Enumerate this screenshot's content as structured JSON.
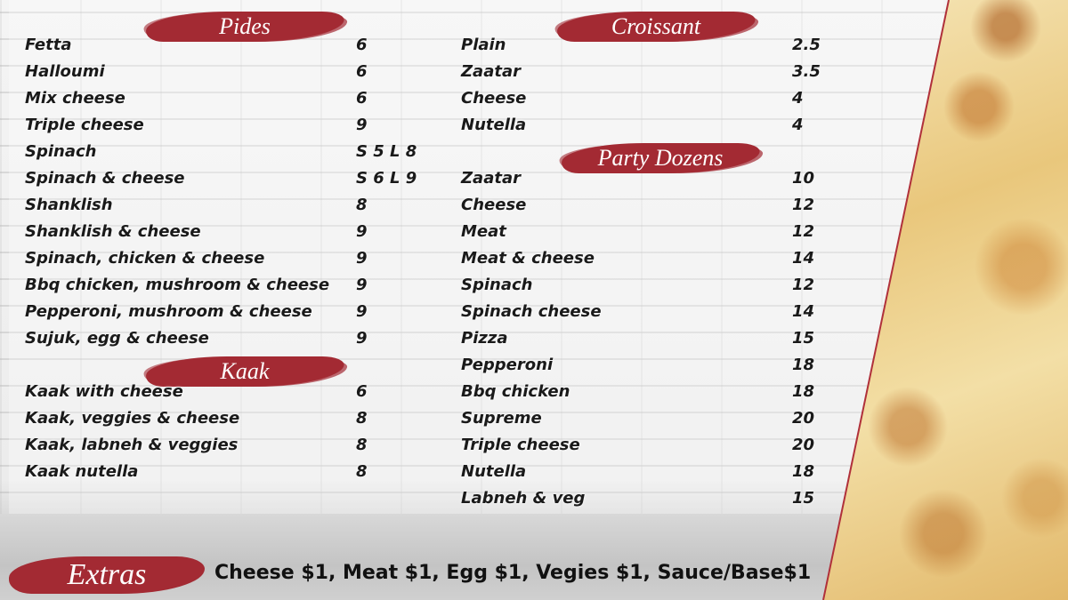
{
  "sections": [
    {
      "title": "Pides",
      "items": [
        {
          "name": "Fetta",
          "price": "6"
        },
        {
          "name": "Halloumi",
          "price": "6"
        },
        {
          "name": "Mix cheese",
          "price": "6"
        },
        {
          "name": "Triple cheese",
          "price": "9"
        },
        {
          "name": "Spinach",
          "price": "S 5  L 8"
        },
        {
          "name": "Spinach & cheese",
          "price": "S 6  L 9"
        },
        {
          "name": "Shanklish",
          "price": "8"
        },
        {
          "name": "Shanklish & cheese",
          "price": "9"
        },
        {
          "name": "Spinach, chicken & cheese",
          "price": "9"
        },
        {
          "name": "Bbq chicken, mushroom & cheese",
          "price": "9"
        },
        {
          "name": "Pepperoni, mushroom & cheese",
          "price": "9"
        },
        {
          "name": "Sujuk, egg & cheese",
          "price": "9"
        }
      ]
    },
    {
      "title": "Kaak",
      "items": [
        {
          "name": "Kaak with cheese",
          "price": "6"
        },
        {
          "name": "Kaak, veggies & cheese",
          "price": "8"
        },
        {
          "name": "Kaak, labneh & veggies",
          "price": "8"
        },
        {
          "name": "Kaak nutella",
          "price": "8"
        }
      ]
    },
    {
      "title": "Croissant",
      "items": [
        {
          "name": "Plain",
          "price": "2.5"
        },
        {
          "name": "Zaatar",
          "price": "3.5"
        },
        {
          "name": "Cheese",
          "price": "4"
        },
        {
          "name": "Nutella",
          "price": "4"
        }
      ]
    },
    {
      "title": "Party Dozens",
      "items": [
        {
          "name": "Zaatar",
          "price": "10"
        },
        {
          "name": "Cheese",
          "price": "12"
        },
        {
          "name": "Meat",
          "price": "12"
        },
        {
          "name": "Meat & cheese",
          "price": "14"
        },
        {
          "name": "Spinach",
          "price": "12"
        },
        {
          "name": "Spinach cheese",
          "price": "14"
        },
        {
          "name": "Pizza",
          "price": "15"
        },
        {
          "name": "Pepperoni",
          "price": "18"
        },
        {
          "name": "Bbq chicken",
          "price": "18"
        },
        {
          "name": "Supreme",
          "price": "20"
        },
        {
          "name": "Triple cheese",
          "price": "20"
        },
        {
          "name": "Nutella",
          "price": "18"
        },
        {
          "name": "Labneh & veg",
          "price": "15"
        }
      ]
    }
  ],
  "extras": {
    "title": "Extras",
    "text": "Cheese $1, Meat $1, Egg $1, Vegies $1, Sauce/Base$1"
  }
}
